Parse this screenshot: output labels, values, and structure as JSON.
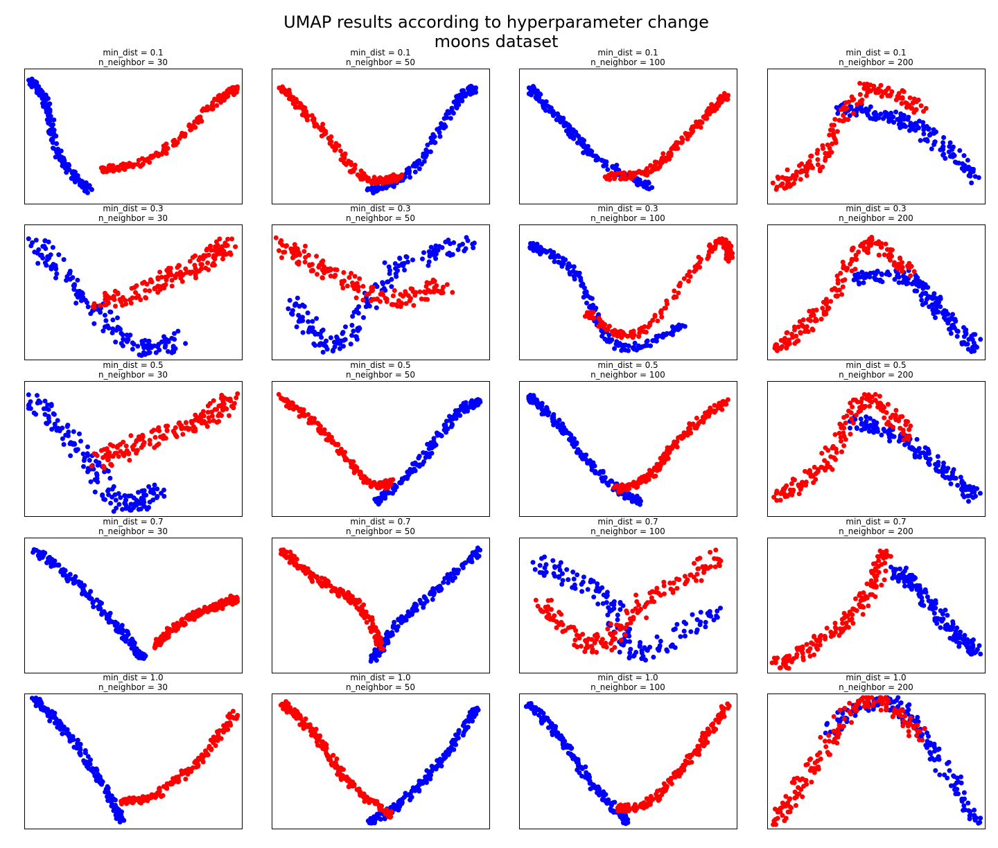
{
  "title": "UMAP results according to hyperparameter change\nmoons dataset",
  "colors": {
    "class_0": "#0000ff",
    "class_1": "#ff0000",
    "frame": "#000000"
  },
  "chart_data": {
    "type": "scatter",
    "title": "UMAP results according to hyperparameter change\nmoons dataset",
    "grid": false,
    "axes_visible": false,
    "xlabel": "",
    "ylabel": "",
    "series_colors": {
      "class_0": "#0000ff",
      "class_1": "#ff0000"
    },
    "rows_min_dist": [
      0.1,
      0.3,
      0.5,
      0.7,
      1.0
    ],
    "cols_n_neighbor": [
      30,
      50,
      100,
      200
    ],
    "subplots": [
      {
        "min_dist": "0.1",
        "n_neighbor": "30",
        "shape": "arc",
        "blue": [
          [
            0.03,
            0.9
          ],
          [
            0.1,
            0.75
          ],
          [
            0.16,
            0.35
          ],
          [
            0.3,
            0.1
          ]
        ],
        "red": [
          [
            0.35,
            0.25
          ],
          [
            0.6,
            0.35
          ],
          [
            0.88,
            0.75
          ],
          [
            0.97,
            0.85
          ]
        ]
      },
      {
        "min_dist": "0.1",
        "n_neighbor": "50",
        "shape": "arc",
        "blue": [
          [
            0.45,
            0.1
          ],
          [
            0.65,
            0.25
          ],
          [
            0.85,
            0.75
          ],
          [
            0.93,
            0.85
          ]
        ],
        "red": [
          [
            0.05,
            0.85
          ],
          [
            0.2,
            0.6
          ],
          [
            0.42,
            0.2
          ],
          [
            0.6,
            0.2
          ]
        ]
      },
      {
        "min_dist": "0.1",
        "n_neighbor": "100",
        "shape": "arc",
        "blue": [
          [
            0.05,
            0.85
          ],
          [
            0.2,
            0.6
          ],
          [
            0.35,
            0.35
          ],
          [
            0.6,
            0.12
          ]
        ],
        "red": [
          [
            0.4,
            0.2
          ],
          [
            0.6,
            0.25
          ],
          [
            0.8,
            0.55
          ],
          [
            0.95,
            0.8
          ]
        ]
      },
      {
        "min_dist": "0.1",
        "n_neighbor": "200",
        "shape": "hump",
        "blue": [
          [
            0.35,
            0.7
          ],
          [
            0.55,
            0.65
          ],
          [
            0.75,
            0.5
          ],
          [
            0.95,
            0.2
          ]
        ],
        "red": [
          [
            0.05,
            0.15
          ],
          [
            0.25,
            0.35
          ],
          [
            0.45,
            0.85
          ],
          [
            0.7,
            0.7
          ]
        ]
      },
      {
        "min_dist": "0.3",
        "n_neighbor": "30",
        "shape": "bowl",
        "blue": [
          [
            0.05,
            0.85
          ],
          [
            0.25,
            0.5
          ],
          [
            0.5,
            0.1
          ],
          [
            0.7,
            0.15
          ]
        ],
        "red": [
          [
            0.35,
            0.4
          ],
          [
            0.6,
            0.55
          ],
          [
            0.8,
            0.7
          ],
          [
            0.95,
            0.85
          ]
        ]
      },
      {
        "min_dist": "0.3",
        "n_neighbor": "50",
        "shape": "bowl",
        "blue": [
          [
            0.1,
            0.4
          ],
          [
            0.3,
            0.1
          ],
          [
            0.55,
            0.65
          ],
          [
            0.9,
            0.85
          ]
        ],
        "red": [
          [
            0.05,
            0.85
          ],
          [
            0.25,
            0.65
          ],
          [
            0.55,
            0.45
          ],
          [
            0.8,
            0.55
          ]
        ]
      },
      {
        "min_dist": "0.3",
        "n_neighbor": "100",
        "shape": "arc",
        "blue": [
          [
            0.05,
            0.85
          ],
          [
            0.25,
            0.65
          ],
          [
            0.45,
            0.1
          ],
          [
            0.75,
            0.25
          ]
        ],
        "red": [
          [
            0.3,
            0.35
          ],
          [
            0.55,
            0.2
          ],
          [
            0.9,
            0.85
          ],
          [
            0.97,
            0.75
          ]
        ]
      },
      {
        "min_dist": "0.3",
        "n_neighbor": "200",
        "shape": "hump",
        "blue": [
          [
            0.4,
            0.6
          ],
          [
            0.65,
            0.6
          ],
          [
            0.8,
            0.35
          ],
          [
            0.95,
            0.1
          ]
        ],
        "red": [
          [
            0.05,
            0.1
          ],
          [
            0.25,
            0.35
          ],
          [
            0.45,
            0.85
          ],
          [
            0.65,
            0.65
          ]
        ]
      },
      {
        "min_dist": "0.5",
        "n_neighbor": "30",
        "shape": "bowl",
        "blue": [
          [
            0.05,
            0.85
          ],
          [
            0.25,
            0.5
          ],
          [
            0.45,
            0.1
          ],
          [
            0.6,
            0.2
          ]
        ],
        "red": [
          [
            0.35,
            0.4
          ],
          [
            0.55,
            0.55
          ],
          [
            0.8,
            0.7
          ],
          [
            0.95,
            0.85
          ]
        ]
      },
      {
        "min_dist": "0.5",
        "n_neighbor": "50",
        "shape": "v",
        "blue": [
          [
            0.48,
            0.1
          ],
          [
            0.65,
            0.35
          ],
          [
            0.85,
            0.75
          ],
          [
            0.95,
            0.85
          ]
        ],
        "red": [
          [
            0.05,
            0.88
          ],
          [
            0.25,
            0.6
          ],
          [
            0.45,
            0.25
          ],
          [
            0.55,
            0.25
          ]
        ]
      },
      {
        "min_dist": "0.5",
        "n_neighbor": "100",
        "shape": "v",
        "blue": [
          [
            0.05,
            0.88
          ],
          [
            0.2,
            0.65
          ],
          [
            0.38,
            0.3
          ],
          [
            0.55,
            0.1
          ]
        ],
        "red": [
          [
            0.45,
            0.2
          ],
          [
            0.6,
            0.3
          ],
          [
            0.75,
            0.6
          ],
          [
            0.95,
            0.85
          ]
        ]
      },
      {
        "min_dist": "0.5",
        "n_neighbor": "200",
        "shape": "hump",
        "blue": [
          [
            0.4,
            0.7
          ],
          [
            0.6,
            0.6
          ],
          [
            0.8,
            0.35
          ],
          [
            0.95,
            0.15
          ]
        ],
        "red": [
          [
            0.05,
            0.15
          ],
          [
            0.25,
            0.35
          ],
          [
            0.45,
            0.85
          ],
          [
            0.65,
            0.6
          ]
        ]
      },
      {
        "min_dist": "0.7",
        "n_neighbor": "30",
        "shape": "v",
        "blue": [
          [
            0.05,
            0.9
          ],
          [
            0.25,
            0.65
          ],
          [
            0.45,
            0.3
          ],
          [
            0.55,
            0.1
          ]
        ],
        "red": [
          [
            0.6,
            0.2
          ],
          [
            0.75,
            0.4
          ],
          [
            0.9,
            0.5
          ],
          [
            0.97,
            0.55
          ]
        ]
      },
      {
        "min_dist": "0.7",
        "n_neighbor": "50",
        "shape": "v",
        "blue": [
          [
            0.47,
            0.1
          ],
          [
            0.55,
            0.3
          ],
          [
            0.75,
            0.6
          ],
          [
            0.95,
            0.9
          ]
        ],
        "red": [
          [
            0.05,
            0.9
          ],
          [
            0.2,
            0.7
          ],
          [
            0.4,
            0.5
          ],
          [
            0.5,
            0.2
          ]
        ]
      },
      {
        "min_dist": "0.7",
        "n_neighbor": "100",
        "shape": "bowl",
        "blue": [
          [
            0.1,
            0.8
          ],
          [
            0.4,
            0.55
          ],
          [
            0.55,
            0.15
          ],
          [
            0.9,
            0.45
          ]
        ],
        "red": [
          [
            0.1,
            0.5
          ],
          [
            0.35,
            0.2
          ],
          [
            0.6,
            0.55
          ],
          [
            0.92,
            0.85
          ]
        ]
      },
      {
        "min_dist": "0.7",
        "n_neighbor": "200",
        "shape": "hump",
        "blue": [
          [
            0.6,
            0.75
          ],
          [
            0.7,
            0.6
          ],
          [
            0.85,
            0.3
          ],
          [
            0.97,
            0.15
          ]
        ],
        "red": [
          [
            0.05,
            0.05
          ],
          [
            0.25,
            0.25
          ],
          [
            0.45,
            0.55
          ],
          [
            0.55,
            0.9
          ]
        ]
      },
      {
        "min_dist": "1.0",
        "n_neighbor": "30",
        "shape": "v",
        "blue": [
          [
            0.05,
            0.95
          ],
          [
            0.2,
            0.7
          ],
          [
            0.35,
            0.35
          ],
          [
            0.45,
            0.05
          ]
        ],
        "red": [
          [
            0.45,
            0.2
          ],
          [
            0.6,
            0.25
          ],
          [
            0.8,
            0.5
          ],
          [
            0.97,
            0.85
          ]
        ]
      },
      {
        "min_dist": "1.0",
        "n_neighbor": "50",
        "shape": "v",
        "blue": [
          [
            0.45,
            0.05
          ],
          [
            0.6,
            0.2
          ],
          [
            0.8,
            0.55
          ],
          [
            0.95,
            0.9
          ]
        ],
        "red": [
          [
            0.05,
            0.92
          ],
          [
            0.2,
            0.7
          ],
          [
            0.35,
            0.35
          ],
          [
            0.55,
            0.1
          ]
        ]
      },
      {
        "min_dist": "1.0",
        "n_neighbor": "100",
        "shape": "v",
        "blue": [
          [
            0.05,
            0.92
          ],
          [
            0.2,
            0.65
          ],
          [
            0.35,
            0.3
          ],
          [
            0.5,
            0.05
          ]
        ],
        "red": [
          [
            0.45,
            0.15
          ],
          [
            0.6,
            0.2
          ],
          [
            0.8,
            0.55
          ],
          [
            0.95,
            0.9
          ]
        ]
      },
      {
        "min_dist": "1.0",
        "n_neighbor": "200",
        "shape": "hump",
        "blue": [
          [
            0.3,
            0.75
          ],
          [
            0.55,
            0.95
          ],
          [
            0.75,
            0.6
          ],
          [
            0.97,
            0.05
          ]
        ],
        "red": [
          [
            0.05,
            0.05
          ],
          [
            0.2,
            0.45
          ],
          [
            0.45,
            0.95
          ],
          [
            0.7,
            0.7
          ]
        ]
      }
    ]
  },
  "panel_titles": [
    {
      "line1": "min_dist = 0.1",
      "line2": "n_neighbor = 30"
    },
    {
      "line1": "min_dist = 0.1",
      "line2": "n_neighbor = 50"
    },
    {
      "line1": "min_dist = 0.1",
      "line2": "n_neighbor = 100"
    },
    {
      "line1": "min_dist = 0.1",
      "line2": "n_neighbor = 200"
    },
    {
      "line1": "min_dist = 0.3",
      "line2": "n_neighbor = 30"
    },
    {
      "line1": "min_dist = 0.3",
      "line2": "n_neighbor = 50"
    },
    {
      "line1": "min_dist = 0.3",
      "line2": "n_neighbor = 100"
    },
    {
      "line1": "min_dist = 0.3",
      "line2": "n_neighbor = 200"
    },
    {
      "line1": "min_dist = 0.5",
      "line2": "n_neighbor = 30"
    },
    {
      "line1": "min_dist = 0.5",
      "line2": "n_neighbor = 50"
    },
    {
      "line1": "min_dist = 0.5",
      "line2": "n_neighbor = 100"
    },
    {
      "line1": "min_dist = 0.5",
      "line2": "n_neighbor = 200"
    },
    {
      "line1": "min_dist = 0.7",
      "line2": "n_neighbor = 30"
    },
    {
      "line1": "min_dist = 0.7",
      "line2": "n_neighbor = 50"
    },
    {
      "line1": "min_dist = 0.7",
      "line2": "n_neighbor = 100"
    },
    {
      "line1": "min_dist = 0.7",
      "line2": "n_neighbor = 200"
    },
    {
      "line1": "min_dist = 1.0",
      "line2": "n_neighbor = 30"
    },
    {
      "line1": "min_dist = 1.0",
      "line2": "n_neighbor = 50"
    },
    {
      "line1": "min_dist = 1.0",
      "line2": "n_neighbor = 100"
    },
    {
      "line1": "min_dist = 1.0",
      "line2": "n_neighbor = 200"
    }
  ]
}
